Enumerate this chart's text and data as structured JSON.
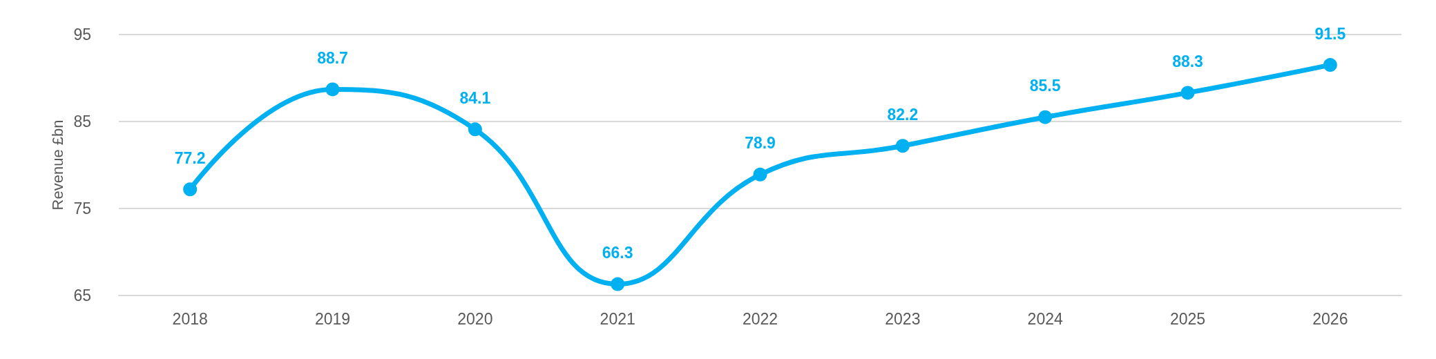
{
  "chart_data": {
    "type": "line",
    "ylabel": "Revenue £bn",
    "categories": [
      "2018",
      "2019",
      "2020",
      "2021",
      "2022",
      "2023",
      "2024",
      "2025",
      "2026"
    ],
    "series": [
      {
        "color": "#00b0f0",
        "values": [
          77.2,
          88.7,
          84.1,
          66.3,
          78.9,
          82.2,
          85.5,
          88.3,
          91.5
        ]
      }
    ],
    "ylim": [
      65,
      95
    ],
    "yticks": [
      65,
      75,
      85,
      95
    ],
    "grid": "y",
    "marker": "circle",
    "line_style": "solid",
    "data_labels": true
  }
}
